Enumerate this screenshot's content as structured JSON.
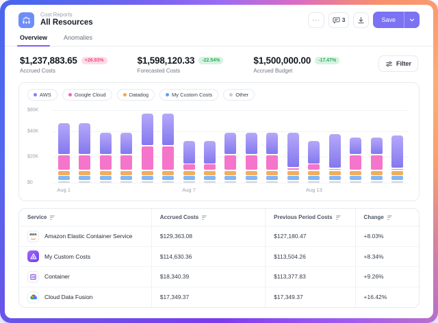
{
  "header": {
    "breadcrumb": "Cost Reports",
    "title": "All Resources",
    "more_label": "···",
    "comments_count": "3",
    "save_label": "Save"
  },
  "tabs": [
    {
      "label": "Overview",
      "active": true
    },
    {
      "label": "Anomalies",
      "active": false
    }
  ],
  "kpis": [
    {
      "value": "$1,237,883.65",
      "badge": "+26.93%",
      "badge_style": "neg-pink",
      "label": "Accrued Costs"
    },
    {
      "value": "$1,598,120.33",
      "badge": "-22.54%",
      "badge_style": "pos-green",
      "label": "Forecasted Costs"
    },
    {
      "value": "$1,500,000.00",
      "badge": "-17.47%",
      "badge_style": "pos-green",
      "label": "Accrued Budget"
    }
  ],
  "filter": {
    "label": "Filter"
  },
  "colors": {
    "accent_purple": "#7b72f4",
    "tab_underline": "#7c5cfa",
    "app_icon_blue": "#6d8ef8",
    "badge_pink_bg": "#fcdce8",
    "badge_pink_text": "#ee4d7e",
    "badge_green_bg": "#d7f3e1",
    "badge_green_text": "#2fae5f"
  },
  "chart_data": {
    "type": "bar",
    "stacked": true,
    "unit": "USD thousands",
    "categories": [
      "Aug 1",
      "Aug 2",
      "Aug 3",
      "Aug 4",
      "Aug 5",
      "Aug 6",
      "Aug 7",
      "Aug 8",
      "Aug 9",
      "Aug 10",
      "Aug 11",
      "Aug 12",
      "Aug 13",
      "Aug 14",
      "Aug 15",
      "Aug 16",
      "Aug 17"
    ],
    "x_tick_shown": [
      "Aug 1",
      "",
      "",
      "",
      "",
      "",
      "Aug 7",
      "",
      "",
      "",
      "",
      "",
      "Aug 13",
      "",
      "",
      "",
      ""
    ],
    "series": [
      {
        "name": "Other",
        "color": "#ced3da",
        "values": [
          2,
          2,
          2,
          2,
          2,
          2,
          2,
          2,
          2,
          2,
          2,
          2,
          2,
          2,
          2,
          2,
          2
        ]
      },
      {
        "name": "My Custom Costs",
        "color": "#82b7f6",
        "values": [
          4,
          4,
          4,
          4,
          4,
          4,
          4,
          4,
          4,
          4,
          4,
          4,
          4,
          4,
          4,
          4,
          4
        ]
      },
      {
        "name": "Datadog",
        "color": "#f2ae5c",
        "values": [
          4,
          4,
          4,
          4,
          4,
          4,
          4,
          4,
          4,
          4,
          4,
          4,
          4,
          4,
          4,
          4,
          4
        ]
      },
      {
        "name": "Google Cloud",
        "color": "#f475c9",
        "values": [
          12,
          12,
          12,
          12,
          19,
          19,
          5,
          5,
          12,
          12,
          12,
          2,
          5,
          1.5,
          12,
          12,
          1.5
        ]
      },
      {
        "name": "AWS",
        "color": "#9287f2",
        "values": [
          35,
          35,
          18,
          18,
          46,
          46,
          18,
          18,
          18,
          18,
          18,
          28,
          18,
          27,
          14,
          14,
          26
        ]
      }
    ],
    "stack_order_bottom_to_top": [
      "Other",
      "My Custom Costs",
      "Datadog",
      "Google Cloud",
      "AWS"
    ],
    "legend": [
      {
        "label": "AWS",
        "color": "#8b7cf6"
      },
      {
        "label": "Google Cloud",
        "color": "#f25ec4"
      },
      {
        "label": "Datadog",
        "color": "#f2a64e"
      },
      {
        "label": "My Custom Costs",
        "color": "#5ba2f5"
      },
      {
        "label": "Other",
        "color": "#c7ccd4"
      }
    ],
    "y_ticks": [
      {
        "label": "$0",
        "value": 0
      },
      {
        "label": "$20K",
        "value": 20
      },
      {
        "label": "$40K",
        "value": 40
      },
      {
        "label": "$80K",
        "value": 80
      }
    ],
    "y_scale": "doubling (equal spacing between 0, 20K, 40K, 80K gridlines)",
    "grid": "horizontal dotted",
    "legend_position": "top"
  },
  "table": {
    "columns": [
      "Service",
      "Accrued Costs",
      "Previous Period Costs",
      "Change"
    ],
    "rows": [
      {
        "icon": "aws-icon",
        "service": "Amazon Elastic Container Service",
        "accrued": "$129,363.08",
        "previous": "$127,180.47",
        "change": "+8.03%"
      },
      {
        "icon": "custom-costs-icon",
        "service": "My Custom Costs",
        "accrued": "$114,630.36",
        "previous": "$113,504.26",
        "change": "+8.34%"
      },
      {
        "icon": "container-icon",
        "service": "Container",
        "accrued": "$18,340.39",
        "previous": "$113,377.83",
        "change": "+9.26%"
      },
      {
        "icon": "cloud-data-fusion-icon",
        "service": "Cloud Data Fusion",
        "accrued": "$17,349.37",
        "previous": "$17,349.37",
        "change": "+16.42%"
      }
    ]
  }
}
